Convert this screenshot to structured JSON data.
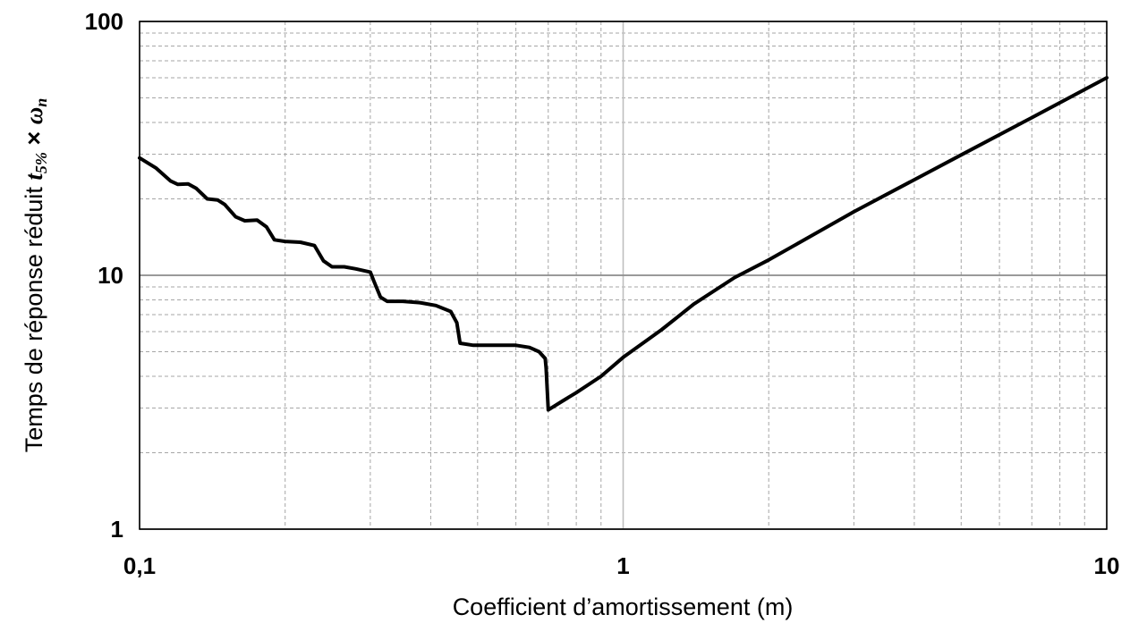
{
  "chart_data": {
    "type": "line",
    "xlabel": "Coefficient d’amortissement (m)",
    "ylabel": {
      "prefix": "Temps de réponse réduit ",
      "t": "t",
      "sub": "5%",
      "times": " × ",
      "omega": "ω",
      "omega_sub": "n"
    },
    "x_scale": "log",
    "y_scale": "log",
    "xlim": [
      0.1,
      10
    ],
    "ylim": [
      1,
      100
    ],
    "x_ticks": [
      {
        "value": 0.1,
        "label": "0,1"
      },
      {
        "value": 1,
        "label": "1"
      },
      {
        "value": 10,
        "label": "10"
      }
    ],
    "y_ticks": [
      {
        "value": 1,
        "label": "1"
      },
      {
        "value": 10,
        "label": "10"
      },
      {
        "value": 100,
        "label": "100"
      }
    ],
    "grid": {
      "major": true,
      "minor": true
    },
    "series": [
      {
        "color": "#000000",
        "points": [
          [
            0.1,
            29.0
          ],
          [
            0.108,
            26.5
          ],
          [
            0.116,
            23.5
          ],
          [
            0.12,
            22.8
          ],
          [
            0.126,
            22.9
          ],
          [
            0.131,
            22.0
          ],
          [
            0.138,
            20.0
          ],
          [
            0.145,
            19.8
          ],
          [
            0.15,
            19.0
          ],
          [
            0.158,
            17.0
          ],
          [
            0.165,
            16.4
          ],
          [
            0.175,
            16.5
          ],
          [
            0.183,
            15.5
          ],
          [
            0.19,
            13.8
          ],
          [
            0.2,
            13.6
          ],
          [
            0.215,
            13.5
          ],
          [
            0.23,
            13.1
          ],
          [
            0.24,
            11.4
          ],
          [
            0.25,
            10.8
          ],
          [
            0.265,
            10.8
          ],
          [
            0.28,
            10.6
          ],
          [
            0.3,
            10.3
          ],
          [
            0.305,
            9.5
          ],
          [
            0.315,
            8.2
          ],
          [
            0.325,
            7.9
          ],
          [
            0.35,
            7.9
          ],
          [
            0.38,
            7.8
          ],
          [
            0.41,
            7.6
          ],
          [
            0.44,
            7.2
          ],
          [
            0.453,
            6.5
          ],
          [
            0.46,
            5.4
          ],
          [
            0.49,
            5.3
          ],
          [
            0.55,
            5.3
          ],
          [
            0.6,
            5.3
          ],
          [
            0.64,
            5.2
          ],
          [
            0.67,
            5.0
          ],
          [
            0.69,
            4.7
          ],
          [
            0.693,
            4.3
          ],
          [
            0.7,
            2.95
          ],
          [
            0.75,
            3.2
          ],
          [
            0.8,
            3.45
          ],
          [
            0.9,
            4.0
          ],
          [
            1.0,
            4.75
          ],
          [
            1.2,
            6.1
          ],
          [
            1.4,
            7.7
          ],
          [
            1.7,
            9.8
          ],
          [
            2.0,
            11.5
          ],
          [
            3.0,
            17.8
          ],
          [
            4.0,
            23.8
          ],
          [
            5.0,
            29.8
          ],
          [
            7.0,
            41.8
          ],
          [
            10.0,
            60.0
          ]
        ]
      }
    ]
  }
}
